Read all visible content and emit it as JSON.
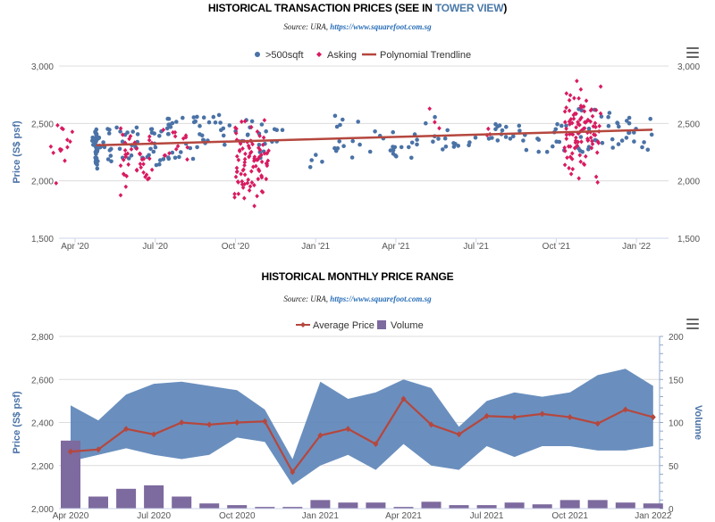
{
  "charts_meta": {
    "top_title_main": "HISTORICAL TRANSACTION PRICES (SEE IN",
    "top_title_link": "TOWER VIEW",
    "top_title_end": ")",
    "top_source_prefix": "Source: URA,",
    "top_source_link": "https://www.squarefoot.com.sg",
    "bottom_title": "HISTORICAL MONTHLY PRICE RANGE",
    "bottom_source_prefix": "Source: URA,",
    "bottom_source_link": "https://www.squarefoot.com.sg",
    "menu_icon": "hamburger-menu-icon"
  },
  "chart_data": [
    {
      "type": "scatter",
      "title": "HISTORICAL TRANSACTION PRICES (SEE IN TOWER VIEW)",
      "ylabel": "Price (S$ psf)",
      "ylim": [
        1500,
        3000
      ],
      "yticks": [
        "1,500",
        "2,000",
        "2,500",
        "3,000"
      ],
      "yticks_values": [
        1500,
        2000,
        2500,
        3000
      ],
      "xticks": [
        "Apr '20",
        "Jul '20",
        "Oct '20",
        "Jan '21",
        "Apr '21",
        "Jul '21",
        "Oct '21",
        "Jan '22"
      ],
      "legend_position": "top-center",
      "grid": true,
      "colors": {
        "over500": "#4a72a6",
        "asking": "#d81b60",
        "trend": "#b5473e"
      },
      "series": [
        {
          "name": ">500sqft",
          "kind": "scatter",
          "clusters": [
            {
              "month": 0.8,
              "spread": 0.05,
              "ymin": 2100,
              "ymax": 2460,
              "count": 40
            },
            {
              "month": 1.0,
              "spread": 0.4,
              "ymin": 2150,
              "ymax": 2480,
              "count": 16
            },
            {
              "month": 1.8,
              "spread": 0.6,
              "ymin": 2170,
              "ymax": 2470,
              "count": 16
            },
            {
              "month": 2.9,
              "spread": 0.6,
              "ymin": 2130,
              "ymax": 2500,
              "count": 22
            },
            {
              "month": 4.0,
              "spread": 0.6,
              "ymin": 2150,
              "ymax": 2550,
              "count": 22
            },
            {
              "month": 5.0,
              "spread": 0.6,
              "ymin": 2250,
              "ymax": 2590,
              "count": 16
            },
            {
              "month": 6.0,
              "spread": 0.6,
              "ymin": 2300,
              "ymax": 2530,
              "count": 10
            },
            {
              "month": 7.2,
              "spread": 0.6,
              "ymin": 2200,
              "ymax": 2520,
              "count": 14
            },
            {
              "month": 9.3,
              "spread": 0.5,
              "ymin": 2100,
              "ymax": 2350,
              "count": 5
            },
            {
              "month": 10.3,
              "spread": 0.6,
              "ymin": 2200,
              "ymax": 2590,
              "count": 12
            },
            {
              "month": 11.3,
              "spread": 0.6,
              "ymin": 2250,
              "ymax": 2500,
              "count": 7
            },
            {
              "month": 12.3,
              "spread": 0.6,
              "ymin": 2200,
              "ymax": 2620,
              "count": 10
            },
            {
              "month": 13.3,
              "spread": 0.6,
              "ymin": 2190,
              "ymax": 2570,
              "count": 8
            },
            {
              "month": 14.3,
              "spread": 0.6,
              "ymin": 2250,
              "ymax": 2450,
              "count": 8
            },
            {
              "month": 15.3,
              "spread": 0.6,
              "ymin": 2300,
              "ymax": 2500,
              "count": 8
            },
            {
              "month": 16.3,
              "spread": 0.6,
              "ymin": 2350,
              "ymax": 2560,
              "count": 10
            },
            {
              "month": 17.3,
              "spread": 0.6,
              "ymin": 2210,
              "ymax": 2450,
              "count": 6
            },
            {
              "month": 18.4,
              "spread": 0.6,
              "ymin": 2220,
              "ymax": 2500,
              "count": 12
            },
            {
              "month": 19.4,
              "spread": 0.6,
              "ymin": 2260,
              "ymax": 2650,
              "count": 14
            },
            {
              "month": 20.4,
              "spread": 0.6,
              "ymin": 2260,
              "ymax": 2590,
              "count": 14
            },
            {
              "month": 21.3,
              "spread": 0.6,
              "ymin": 2260,
              "ymax": 2580,
              "count": 8
            }
          ]
        },
        {
          "name": "Asking",
          "kind": "scatter",
          "clusters": [
            {
              "month": -0.6,
              "spread": 0.5,
              "ymin": 1930,
              "ymax": 2620,
              "count": 14
            },
            {
              "month": 2.3,
              "spread": 0.6,
              "ymin": 1850,
              "ymax": 2560,
              "count": 40
            },
            {
              "month": 3.8,
              "spread": 0.5,
              "ymin": 2150,
              "ymax": 2520,
              "count": 14
            },
            {
              "month": 6.6,
              "spread": 0.65,
              "ymin": 1740,
              "ymax": 2580,
              "count": 90
            },
            {
              "month": 13.2,
              "spread": 0.5,
              "ymin": 2300,
              "ymax": 2660,
              "count": 3
            },
            {
              "month": 15.5,
              "spread": 0.5,
              "ymin": 2240,
              "ymax": 2520,
              "count": 3
            },
            {
              "month": 19.0,
              "spread": 0.7,
              "ymin": 1930,
              "ymax": 2910,
              "count": 100
            }
          ]
        },
        {
          "name": "Polynomial Trendline",
          "kind": "line",
          "x": [
            0.8,
            21.6
          ],
          "y": [
            2310,
            2445
          ]
        }
      ]
    },
    {
      "type": "area-line-bar",
      "title": "HISTORICAL MONTHLY PRICE RANGE",
      "ylabel": "Price (S$ psf)",
      "ylabel_right": "Volume",
      "ylim": [
        2000,
        2800
      ],
      "yticks": [
        "2,000",
        "2,200",
        "2,400",
        "2,600",
        "2,800"
      ],
      "yticks_values": [
        2000,
        2200,
        2400,
        2600,
        2800
      ],
      "ylim_right": [
        0,
        200
      ],
      "yticks_right": [
        "0",
        "50",
        "100",
        "150",
        "200"
      ],
      "yticks_right_values": [
        0,
        50,
        100,
        150,
        200
      ],
      "xticks": [
        "Apr 2020",
        "Jul 2020",
        "Oct 2020",
        "Jan 2021",
        "Apr 2021",
        "Jul 2021",
        "Oct 2021",
        "Jan 2022"
      ],
      "legend_position": "top-center",
      "grid": true,
      "colors": {
        "range": "#5d86b8",
        "average": "#b5473e",
        "volume": "#7d6a9e"
      },
      "categories": [
        "Apr 2020",
        "May 2020",
        "Jun 2020",
        "Jul 2020",
        "Aug 2020",
        "Sep 2020",
        "Oct 2020",
        "Nov 2020",
        "Dec 2020",
        "Jan 2021",
        "Feb 2021",
        "Mar 2021",
        "Apr 2021",
        "May 2021",
        "Jun 2021",
        "Jul 2021",
        "Aug 2021",
        "Sep 2021",
        "Oct 2021",
        "Nov 2021",
        "Dec 2021",
        "Jan 2022"
      ],
      "series": [
        {
          "name": "Price Range",
          "kind": "arearange",
          "low": [
            2220,
            2250,
            2280,
            2250,
            2230,
            2250,
            2330,
            2310,
            2110,
            2200,
            2250,
            2180,
            2300,
            2200,
            2180,
            2290,
            2240,
            2290,
            2290,
            2270,
            2270,
            2290
          ],
          "high": [
            2480,
            2410,
            2530,
            2580,
            2590,
            2570,
            2550,
            2460,
            2230,
            2590,
            2510,
            2540,
            2600,
            2560,
            2380,
            2500,
            2540,
            2520,
            2540,
            2620,
            2650,
            2570
          ]
        },
        {
          "name": "Average Price",
          "kind": "line",
          "values": [
            2265,
            2275,
            2370,
            2345,
            2400,
            2390,
            2400,
            2405,
            2170,
            2340,
            2370,
            2300,
            2510,
            2390,
            2345,
            2430,
            2425,
            2440,
            2425,
            2395,
            2460,
            2425
          ]
        },
        {
          "name": "Volume",
          "kind": "bar",
          "axis": "right",
          "values": [
            79,
            14,
            23,
            27,
            14,
            6,
            4,
            2,
            2,
            10,
            7,
            7,
            2,
            8,
            4,
            4,
            7,
            5,
            10,
            10,
            7,
            6
          ]
        }
      ]
    }
  ]
}
